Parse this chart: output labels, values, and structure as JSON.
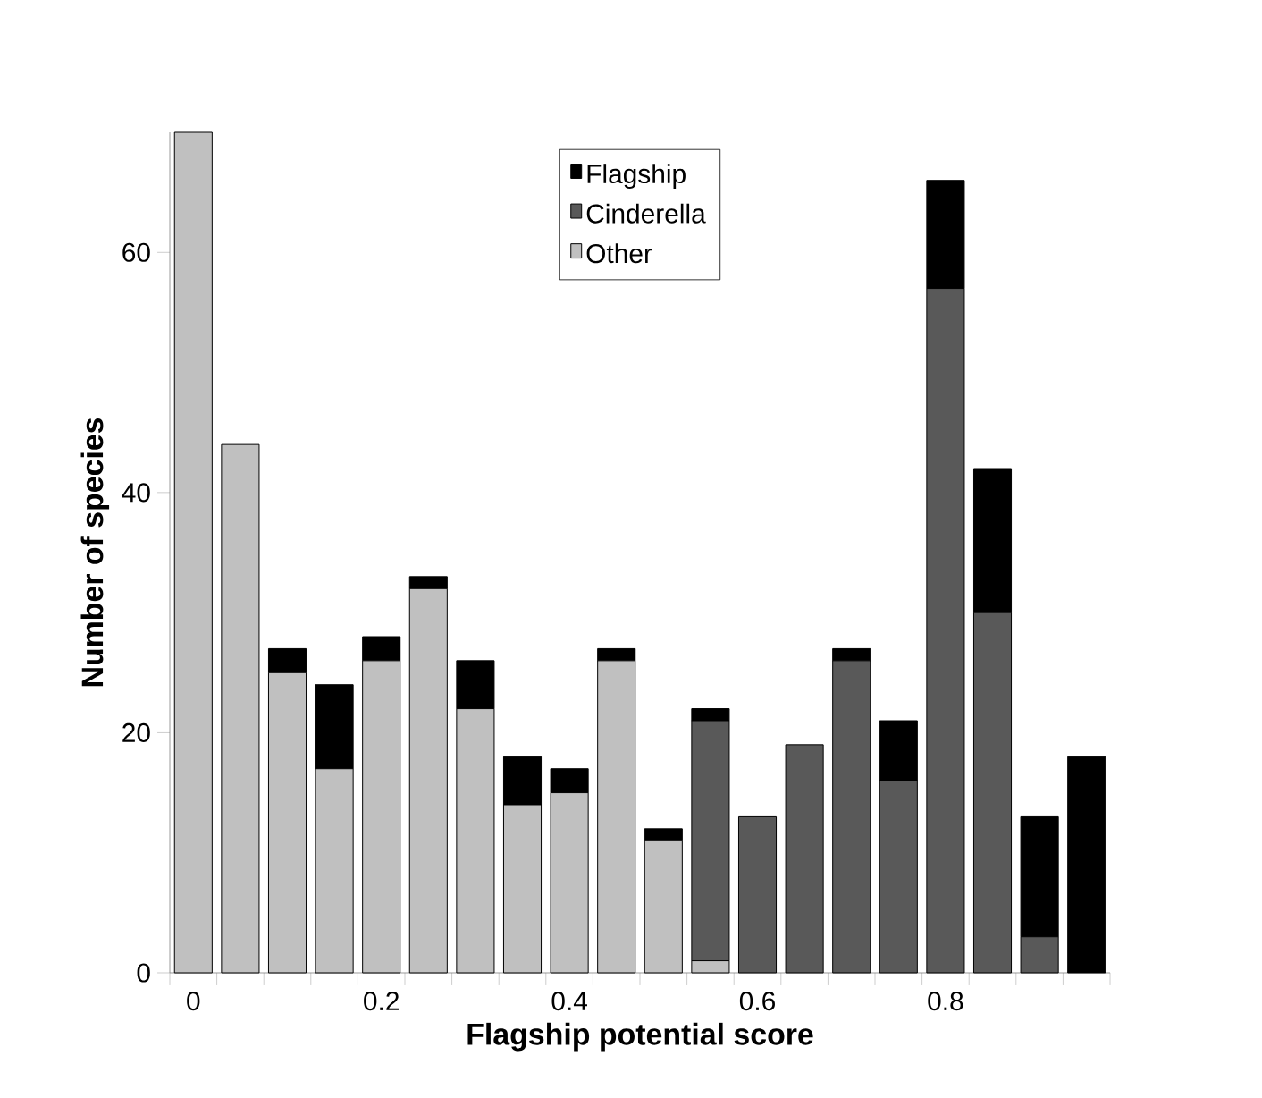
{
  "chart_data": {
    "type": "bar",
    "stacked": true,
    "xlabel": "Flagship potential score",
    "ylabel": "Number of species",
    "categories": [
      "0",
      null,
      null,
      null,
      "0.2",
      null,
      null,
      null,
      "0.4",
      null,
      null,
      null,
      "0.6",
      null,
      null,
      null,
      "0.8",
      null,
      null,
      null
    ],
    "series": [
      {
        "name": "Other",
        "color": "#c0c0c0",
        "values": [
          70,
          44,
          25,
          17,
          26,
          32,
          22,
          14,
          15,
          26,
          11,
          1,
          0,
          0,
          0,
          0,
          0,
          0,
          0,
          0
        ]
      },
      {
        "name": "Cinderella",
        "color": "#595959",
        "values": [
          0,
          0,
          0,
          0,
          0,
          0,
          0,
          0,
          0,
          0,
          0,
          20,
          13,
          19,
          26,
          16,
          57,
          30,
          3,
          0
        ]
      },
      {
        "name": "Flagship",
        "color": "#000000",
        "values": [
          0,
          0,
          2,
          7,
          2,
          1,
          4,
          4,
          2,
          1,
          1,
          1,
          0,
          0,
          1,
          5,
          9,
          12,
          10,
          18
        ]
      }
    ],
    "ylim": [
      0,
      70
    ],
    "yticks": [
      0,
      20,
      40,
      60
    ],
    "legend": "top",
    "grid": false
  }
}
